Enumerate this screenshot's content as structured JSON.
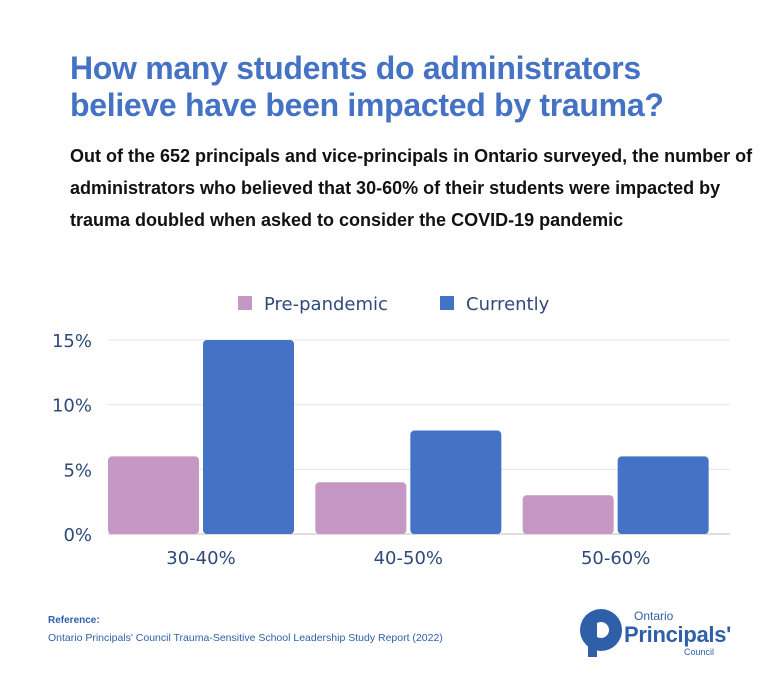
{
  "title": "How many students do administrators believe have been impacted by trauma?",
  "subtitle": "Out of the 652 principals and vice-principals in Ontario surveyed, the number of administrators who believed that 30-60% of their students were impacted by trauma doubled when asked to consider the COVID-19 pandemic",
  "reference": {
    "label": "Reference:",
    "text": "Ontario Principals' Council Trauma-Sensitive School Leadership Study Report (2022)"
  },
  "logo": {
    "top": "Ontario",
    "main": "Principals'",
    "bottom": "Council"
  },
  "colors": {
    "pre_pandemic": "#c497c4",
    "currently": "#4472c4",
    "title": "#4472c4",
    "axis_text": "#2f4a7a"
  },
  "chart_data": {
    "type": "bar",
    "categories": [
      "30-40%",
      "40-50%",
      "50-60%"
    ],
    "series": [
      {
        "name": "Pre-pandemic",
        "values": [
          6,
          4,
          3
        ]
      },
      {
        "name": "Currently",
        "values": [
          15,
          8,
          6
        ]
      }
    ],
    "ylim": [
      0,
      15
    ],
    "yticks": [
      0,
      5,
      10,
      15
    ],
    "ytick_labels": [
      "0%",
      "5%",
      "10%",
      "15%"
    ],
    "grid": true,
    "legend": "top-center"
  }
}
